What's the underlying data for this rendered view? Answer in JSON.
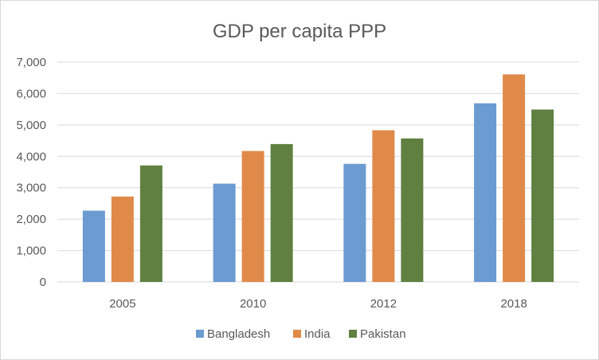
{
  "chart_data": {
    "type": "bar",
    "title": "GDP per capita PPP",
    "xlabel": "",
    "ylabel": "",
    "categories": [
      "2005",
      "2010",
      "2012",
      "2018"
    ],
    "series": [
      {
        "name": "Bangladesh",
        "color": "#6b9bd1",
        "values": [
          2270,
          3130,
          3760,
          5690
        ]
      },
      {
        "name": "India",
        "color": "#e08a4a",
        "values": [
          2720,
          4170,
          4830,
          6610
        ]
      },
      {
        "name": "Pakistan",
        "color": "#5f8040",
        "values": [
          3710,
          4390,
          4570,
          5490
        ]
      }
    ],
    "ylim": [
      0,
      7000
    ],
    "yticks": [
      "0",
      "1,000",
      "2,000",
      "3,000",
      "4,000",
      "5,000",
      "6,000",
      "7,000"
    ],
    "ytick_values": [
      0,
      1000,
      2000,
      3000,
      4000,
      5000,
      6000,
      7000
    ],
    "grid": true,
    "legend_position": "bottom"
  }
}
